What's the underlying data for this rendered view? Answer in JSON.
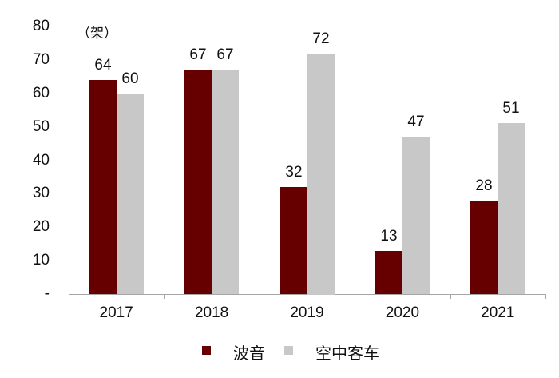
{
  "chart_data": {
    "type": "bar",
    "title": "",
    "unit_label": "（架）",
    "xlabel": "",
    "ylabel": "架",
    "categories": [
      "2017",
      "2018",
      "2019",
      "2020",
      "2021"
    ],
    "series": [
      {
        "name": "波音",
        "color": "#660000",
        "values": [
          64,
          67,
          32,
          13,
          28
        ]
      },
      {
        "name": "空中客车",
        "color": "#c8c8c8",
        "values": [
          60,
          67,
          72,
          47,
          51
        ]
      }
    ],
    "ylim": [
      0,
      80
    ],
    "yticks": [
      "-",
      "10",
      "20",
      "30",
      "40",
      "50",
      "60",
      "70",
      "80"
    ],
    "grid": false,
    "legend_position": "bottom"
  },
  "legend": {
    "items": [
      {
        "label": "波音",
        "color": "#660000"
      },
      {
        "label": "空中客车",
        "color": "#c8c8c8"
      }
    ]
  }
}
